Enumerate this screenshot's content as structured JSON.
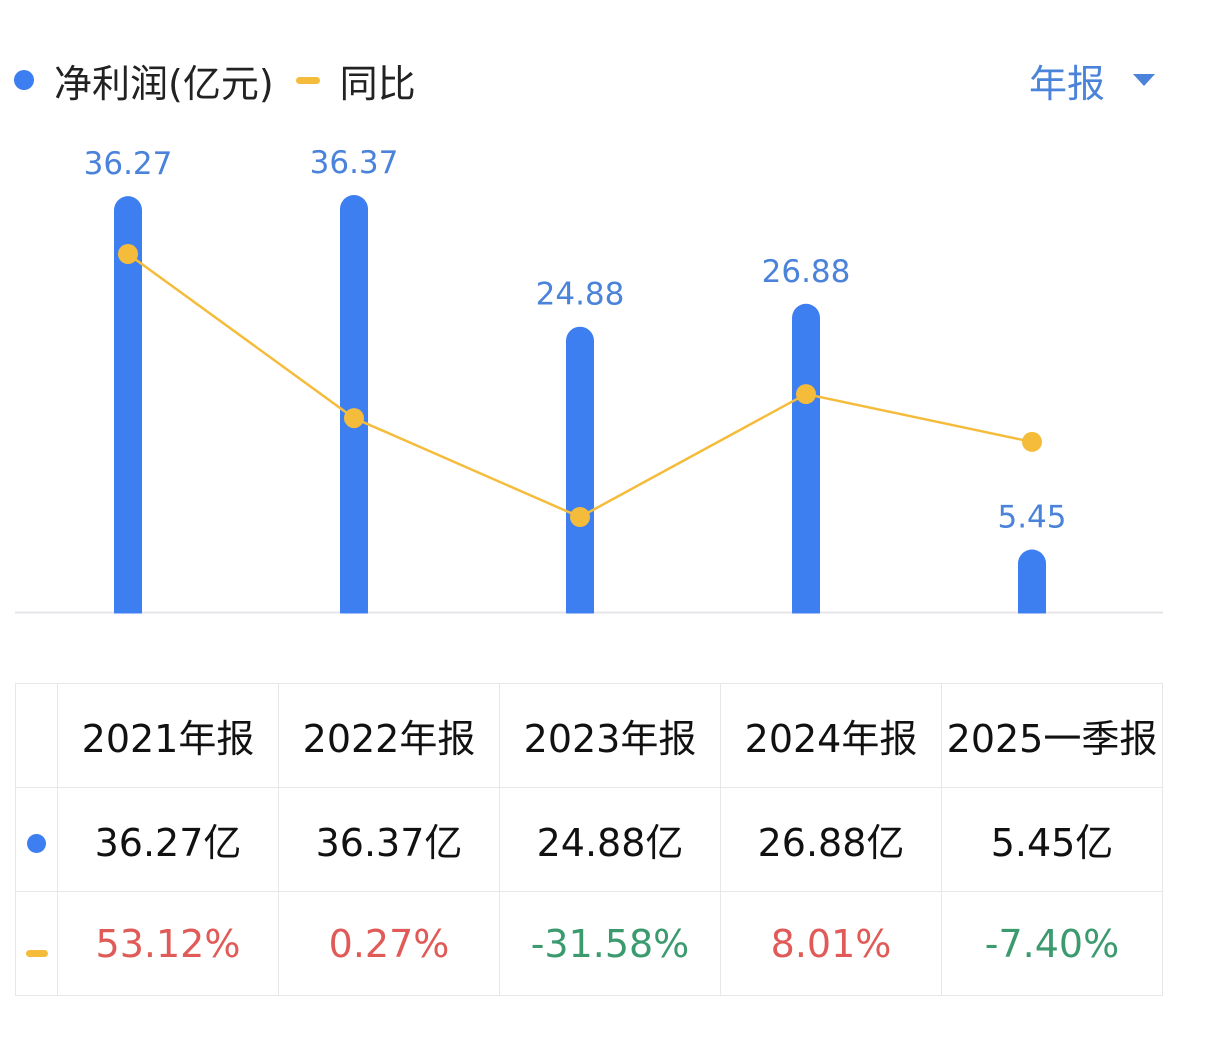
{
  "legend": {
    "series1_label": "净利润(亿元)",
    "series2_label": "同比"
  },
  "period_selector": {
    "label": "年报"
  },
  "colors": {
    "bar": "#3d7ff0",
    "line": "#f5bc3c",
    "value_label": "#4a83d9",
    "accent_link": "#4a83d9",
    "positive": "#e05b57",
    "negative": "#3c9a6f",
    "axis": "#e6e6ea"
  },
  "chart_data": {
    "type": "bar",
    "categories": [
      "2021年报",
      "2022年报",
      "2023年报",
      "2024年报",
      "2025一季报"
    ],
    "series": [
      {
        "name": "净利润(亿元)",
        "type": "bar",
        "values": [
          36.27,
          36.37,
          24.88,
          26.88,
          5.45
        ]
      },
      {
        "name": "同比",
        "type": "line",
        "values": [
          53.12,
          0.27,
          -31.58,
          8.01,
          -7.4
        ]
      }
    ],
    "data_labels": [
      "36.27",
      "36.37",
      "24.88",
      "26.88",
      "5.45"
    ],
    "ylim": [
      0,
      36.37
    ],
    "y2lim": [
      -31.58,
      53.12
    ],
    "grid": false,
    "legend_position": "top-left"
  },
  "table": {
    "headers": [
      "2021年报",
      "2022年报",
      "2023年报",
      "2024年报",
      "2025一季报"
    ],
    "net_profit": [
      "36.27亿",
      "36.37亿",
      "24.88亿",
      "26.88亿",
      "5.45亿"
    ],
    "yoy": [
      "53.12%",
      "0.27%",
      "-31.58%",
      "8.01%",
      "-7.40%"
    ]
  }
}
